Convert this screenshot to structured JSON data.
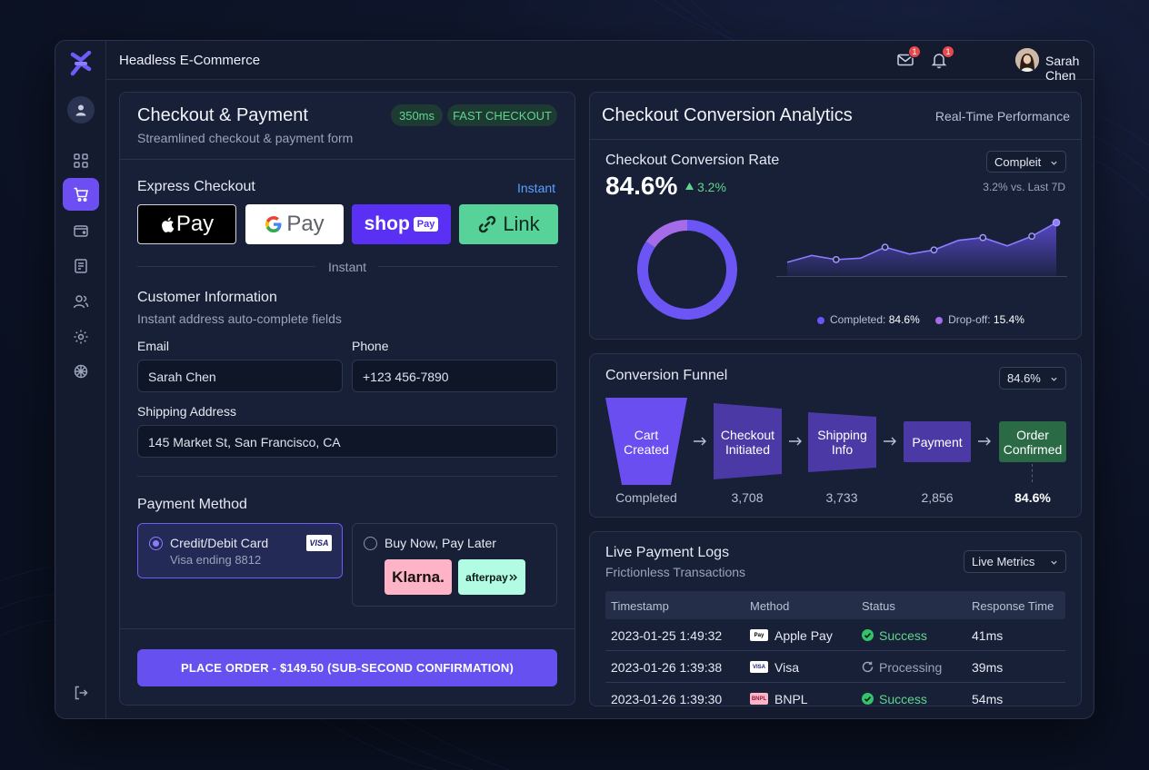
{
  "app": {
    "title": "Headless E-Commerce"
  },
  "top": {
    "mail_badge": "1",
    "bell_badge": "1",
    "user_name": "Sarah Chen"
  },
  "checkout": {
    "title": "Checkout & Payment",
    "subtitle": "Streamlined checkout & payment form",
    "latency": "350ms",
    "fast_label": "FAST CHECKOUT",
    "express_title": "Express Checkout",
    "express_tag": "Instant",
    "apple_pay": "Pay",
    "google_pay": "Pay",
    "shop": "shop",
    "shop_pay": "Pay",
    "link": "Link",
    "divider_text": "Instant",
    "customer_title": "Customer Information",
    "customer_sub": "Instant address auto-complete fields",
    "email_label": "Email",
    "email_value": "Sarah Chen",
    "phone_label": "Phone",
    "phone_value": "+123 456-7890",
    "address_label": "Shipping Address",
    "address_value": "145 Market St, San Francisco, CA",
    "payment_title": "Payment Method",
    "card_title": "Credit/Debit Card",
    "card_sub": "Visa ending 8812",
    "card_brand": "VISA",
    "bnpl_title": "Buy Now, Pay Later",
    "klarna": "Klarna.",
    "afterpay": "afterpay",
    "cta": "PLACE ORDER - $149.50 (SUB-SECOND CONFIRMATION)"
  },
  "analytics": {
    "title": "Checkout Conversion Analytics",
    "tag": "Real-Time Performance",
    "rate_title": "Checkout Conversion Rate",
    "rate_value": "84.6%",
    "delta": "3.2%",
    "dropdown": "Compleit",
    "compare": "3.2% vs. Last 7D",
    "legend_completed_label": "Completed:",
    "legend_completed_value": "84.6%",
    "legend_drop_label": "Drop-off:",
    "legend_drop_value": "15.4%",
    "colors": {
      "completed": "#6c55f5",
      "dropoff": "#a66be8"
    }
  },
  "chart_data": [
    {
      "type": "pie",
      "categories": [
        "Completed",
        "Drop-off"
      ],
      "values": [
        84.6,
        15.4
      ],
      "title": "",
      "style": "donut"
    },
    {
      "type": "area",
      "x": [
        1,
        2,
        3,
        4,
        5,
        6,
        7,
        8,
        9,
        10,
        11,
        12
      ],
      "values": [
        1.0,
        1.5,
        1.2,
        1.3,
        2.1,
        1.6,
        1.9,
        2.6,
        2.8,
        2.2,
        2.9,
        3.9
      ],
      "title": "",
      "xlabel": "",
      "ylabel": "",
      "ylim": [
        0,
        4.5
      ],
      "grid": false
    }
  ],
  "funnel": {
    "title": "Conversion Funnel",
    "dropdown": "84.6%",
    "stages": [
      {
        "label1": "Cart",
        "label2": "Created",
        "value": "Completed"
      },
      {
        "label1": "Checkout",
        "label2": "Initiated",
        "value": "3,708"
      },
      {
        "label1": "Shipping",
        "label2": "Info",
        "value": "3,733"
      },
      {
        "label1": "Payment",
        "label2": "",
        "value": "2,856"
      },
      {
        "label1": "Order",
        "label2": "Confirmed",
        "value": "84.6%"
      }
    ]
  },
  "logs": {
    "title": "Live Payment Logs",
    "subtitle": "Frictionless Transactions",
    "dropdown": "Live Metrics",
    "headers": [
      "Timestamp",
      "Method",
      "Status",
      "Response Time"
    ],
    "rows": [
      {
        "ts": "2023-01-25 1:49:32",
        "icon": "Pay",
        "method": "Apple Pay",
        "status": "Success",
        "time": "41ms"
      },
      {
        "ts": "2023-01-26 1:39:38",
        "icon": "VISA",
        "method": "Visa",
        "status": "Processing",
        "time": "39ms"
      },
      {
        "ts": "2023-01-26 1:39:30",
        "icon": "BNPL",
        "method": "BNPL",
        "status": "Success",
        "time": "54ms"
      }
    ]
  }
}
